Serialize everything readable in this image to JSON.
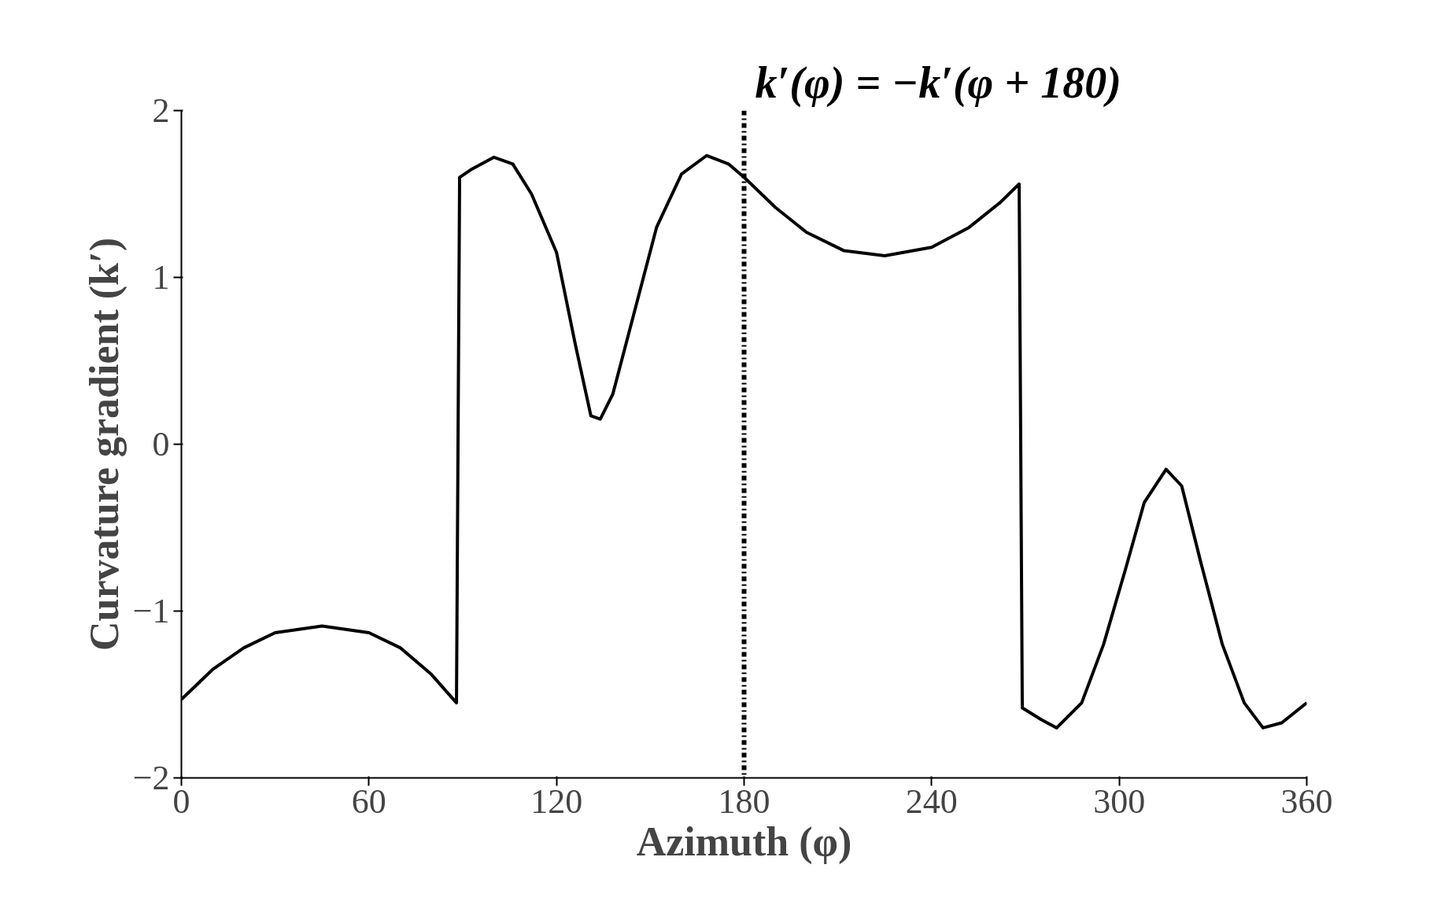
{
  "chart_data": {
    "type": "line",
    "xlabel": "Azimuth (φ)",
    "ylabel": "Curvature gradient (k′)",
    "x": [
      0,
      10,
      20,
      30,
      45,
      60,
      70,
      80,
      88,
      89,
      93,
      100,
      106,
      112,
      120,
      126,
      131,
      134,
      138,
      145,
      152,
      160,
      168,
      175,
      180,
      190,
      200,
      212,
      225,
      240,
      252,
      262,
      268,
      269,
      275,
      280,
      288,
      295,
      302,
      308,
      315,
      320,
      326,
      333,
      340,
      346,
      352,
      360
    ],
    "series": [
      {
        "color": "#000000",
        "values": [
          -1.53,
          -1.35,
          -1.22,
          -1.13,
          -1.09,
          -1.13,
          -1.22,
          -1.38,
          -1.55,
          1.6,
          1.65,
          1.72,
          1.68,
          1.5,
          1.15,
          0.6,
          0.17,
          0.15,
          0.3,
          0.8,
          1.3,
          1.62,
          1.73,
          1.68,
          1.6,
          1.42,
          1.27,
          1.16,
          1.13,
          1.18,
          1.3,
          1.45,
          1.56,
          -1.58,
          -1.65,
          -1.7,
          -1.55,
          -1.2,
          -0.75,
          -0.35,
          -0.15,
          -0.25,
          -0.7,
          -1.2,
          -1.55,
          -1.7,
          -1.67,
          -1.55
        ]
      }
    ],
    "xlim": [
      0,
      360
    ],
    "xticks": [
      0,
      60,
      120,
      180,
      240,
      300,
      360
    ],
    "ylim": [
      -2,
      2
    ],
    "yticks": [
      -2,
      -1,
      0,
      1,
      2
    ],
    "grid": false,
    "marker": "none",
    "line_style": "solid",
    "ref_lines": [
      {
        "axis": "x",
        "value": 180,
        "label": "k′(φ) = −k′(φ + 180)",
        "color": "#000000",
        "line_style": "dashdot"
      }
    ]
  }
}
